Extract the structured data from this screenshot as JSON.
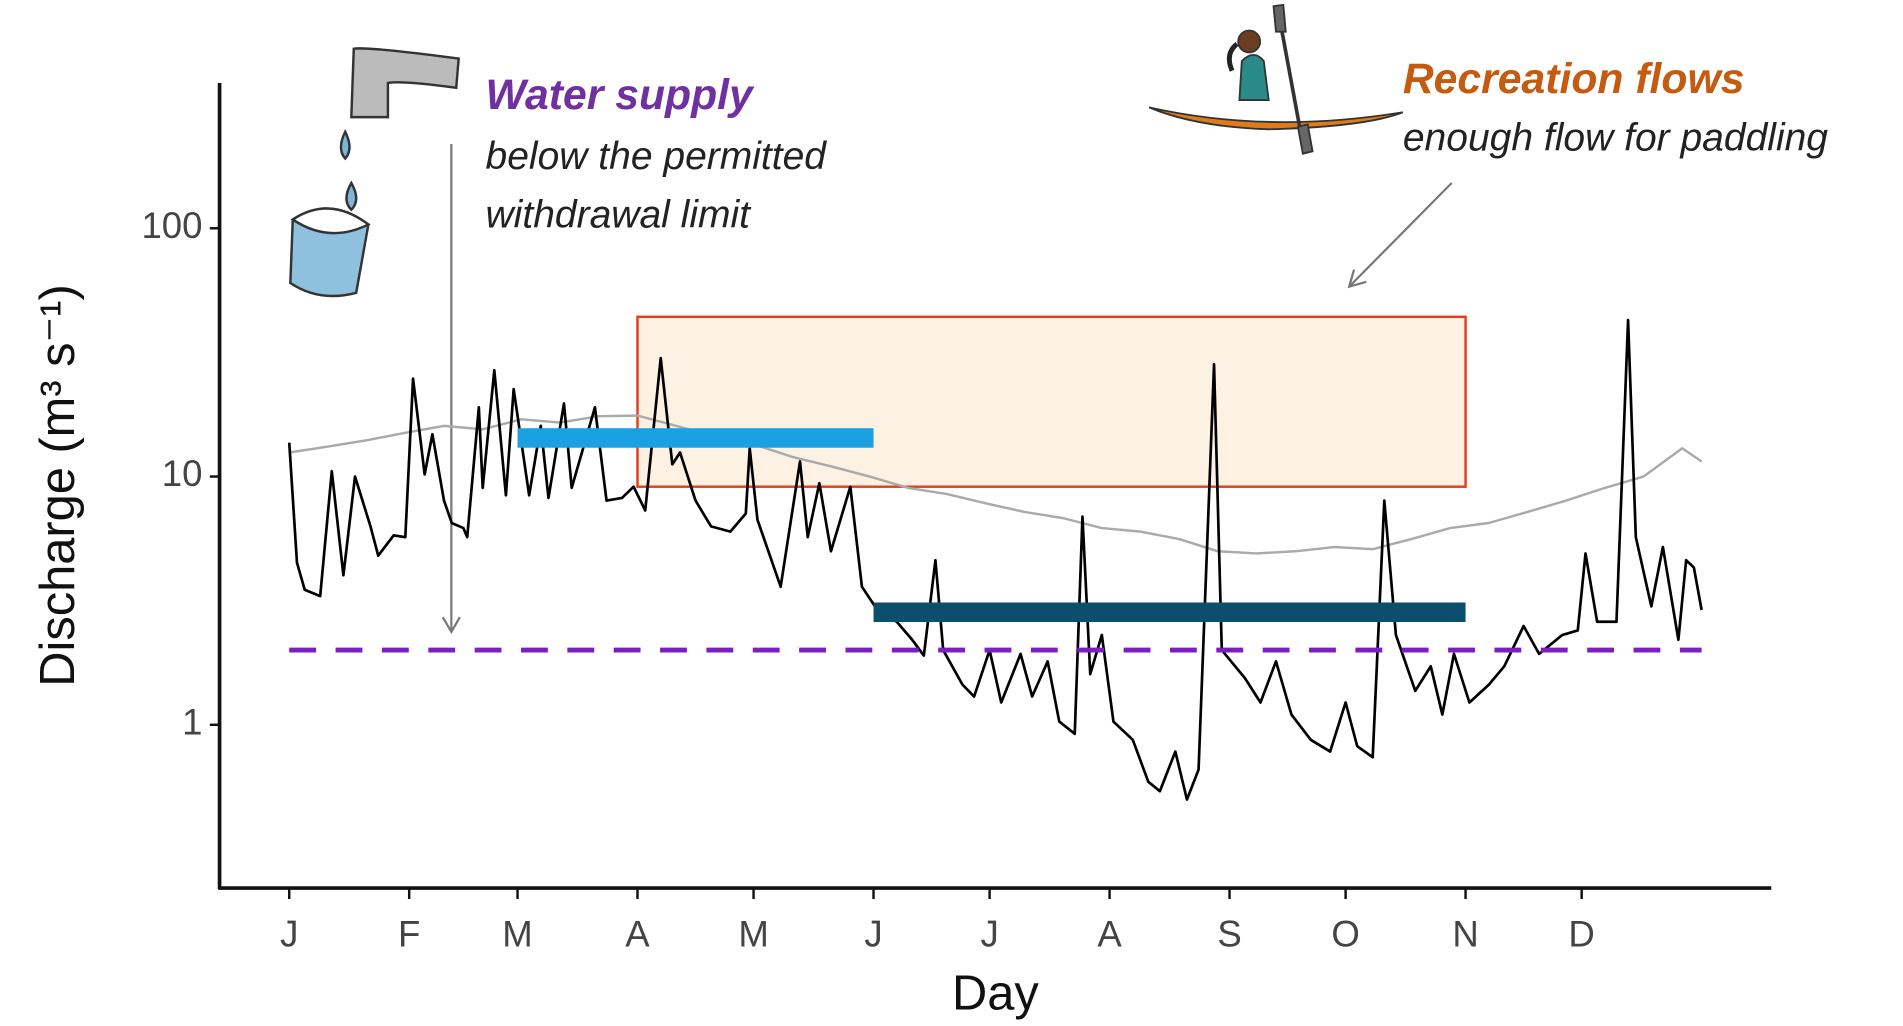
{
  "chart_data": {
    "type": "line",
    "x_label": "Day",
    "y_label": "Discharge (m³ s⁻¹)",
    "log_y": true,
    "xlim": [
      -18,
      383
    ],
    "ylim": [
      0.22,
      385
    ],
    "xticks": [
      {
        "value": 0,
        "label": "J"
      },
      {
        "value": 31,
        "label": "F"
      },
      {
        "value": 59,
        "label": "M"
      },
      {
        "value": 90,
        "label": "A"
      },
      {
        "value": 120,
        "label": "M"
      },
      {
        "value": 151,
        "label": "J"
      },
      {
        "value": 181,
        "label": "J"
      },
      {
        "value": 212,
        "label": "A"
      },
      {
        "value": 243,
        "label": "S"
      },
      {
        "value": 273,
        "label": "O"
      },
      {
        "value": 304,
        "label": "N"
      },
      {
        "value": 334,
        "label": "D"
      }
    ],
    "yticks": [
      1,
      10,
      100
    ],
    "series": [
      {
        "color": "#aaaaaa",
        "x": [
          0,
          10,
          20,
          30,
          40,
          50,
          60,
          70,
          80,
          90,
          100,
          110,
          120,
          130,
          140,
          150,
          160,
          170,
          180,
          190,
          200,
          210,
          220,
          230,
          240,
          250,
          260,
          270,
          280,
          290,
          300,
          310,
          320,
          330,
          340,
          350,
          360,
          365
        ],
        "values": [
          12.5,
          13.2,
          14,
          15,
          16,
          15.5,
          17,
          16.5,
          17.5,
          17.6,
          16,
          14.5,
          13.5,
          12,
          11,
          10,
          9,
          8.5,
          7.8,
          7.2,
          6.8,
          6.2,
          6,
          5.6,
          5,
          4.9,
          5,
          5.2,
          5.1,
          5.6,
          6.2,
          6.5,
          7.2,
          8,
          9,
          10,
          13,
          11.5
        ]
      },
      {
        "color": "#000000",
        "x": [
          0,
          2,
          4,
          8,
          11,
          14,
          17,
          21,
          23,
          27,
          30,
          32,
          35,
          37,
          40,
          42,
          45,
          46,
          49,
          50,
          53,
          56,
          58,
          62,
          65,
          67,
          71,
          73,
          79,
          82,
          86,
          89,
          92,
          96,
          99,
          101,
          105,
          109,
          114,
          118,
          119,
          121,
          127,
          132,
          134,
          137,
          140,
          145,
          148,
          152,
          157,
          161,
          164,
          167,
          169,
          174,
          177,
          181,
          184,
          189,
          192,
          196,
          199,
          203,
          205,
          207,
          210,
          213,
          218,
          222,
          225,
          229,
          232,
          235,
          239,
          241,
          247,
          251,
          255,
          259,
          264,
          269,
          273,
          276,
          280,
          283,
          286,
          291,
          295,
          298,
          301,
          305,
          310,
          314,
          319,
          323,
          329,
          333,
          335,
          338,
          343,
          346,
          348,
          352,
          355,
          359,
          361,
          363,
          365
        ],
        "values": [
          13.7,
          4.5,
          3.5,
          3.3,
          10.5,
          4.0,
          10,
          6.3,
          4.8,
          5.8,
          5.7,
          24.8,
          10.2,
          14.8,
          8,
          6.5,
          6.2,
          5.7,
          19,
          9,
          26.8,
          8.4,
          22.5,
          8.4,
          16,
          8.2,
          19.7,
          9,
          19,
          8,
          8.2,
          9.1,
          7.3,
          30,
          11.2,
          12.5,
          8,
          6.3,
          6,
          7.1,
          13,
          6.7,
          3.6,
          11.5,
          5.7,
          9.4,
          5,
          9.1,
          3.6,
          2.9,
          2.6,
          2.2,
          1.9,
          4.6,
          2.0,
          1.45,
          1.3,
          2.0,
          1.23,
          1.93,
          1.3,
          1.8,
          1.03,
          0.92,
          6.9,
          1.6,
          2.3,
          1.03,
          0.87,
          0.59,
          0.54,
          0.78,
          0.5,
          0.66,
          28.3,
          2.0,
          1.54,
          1.23,
          1.8,
          1.1,
          0.87,
          0.78,
          1.23,
          0.82,
          0.74,
          8,
          2.3,
          1.37,
          1.72,
          1.1,
          1.93,
          1.23,
          1.45,
          1.72,
          2.5,
          1.93,
          2.3,
          2.4,
          4.9,
          2.6,
          2.6,
          42.7,
          5.7,
          3.0,
          5.2,
          2.2,
          4.6,
          4.3,
          2.9
        ]
      }
    ],
    "threshold": {
      "value": 2,
      "start": 0,
      "end": 365,
      "color": "#7b1fc4",
      "style": "dashed"
    },
    "periods": [
      {
        "start": 59,
        "end": 151,
        "value": 14.3,
        "color": "#1ba1e2"
      },
      {
        "start": 151,
        "end": 304,
        "value": 2.84,
        "color": "#0b4f6c"
      }
    ],
    "recreation_box": {
      "start": 90,
      "end": 304,
      "low": 9.1,
      "high": 44,
      "fill": "#fdf1e4",
      "stroke": "#e0401c"
    },
    "annotations": {
      "water_supply": {
        "title": "Water supply",
        "lines": [
          "below the permitted",
          "withdrawal limit"
        ],
        "color": "#7030a0"
      },
      "recreation": {
        "title": "Recreation flows",
        "lines": [
          "enough flow for paddling"
        ],
        "color": "#c55a11"
      }
    }
  }
}
